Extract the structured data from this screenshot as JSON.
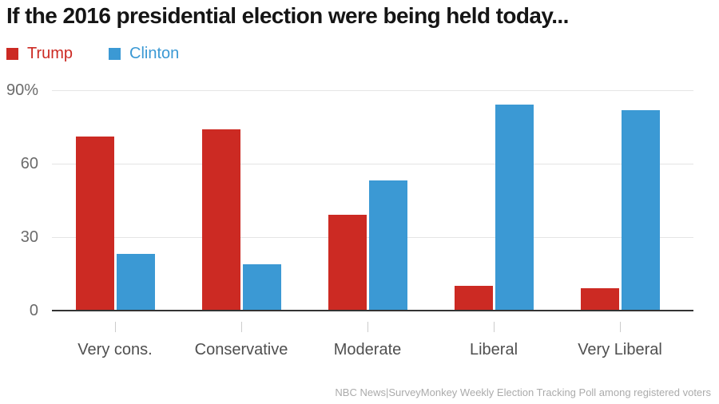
{
  "header": {
    "title": "If the 2016 presidential election were being held today..."
  },
  "chart_data": {
    "type": "bar",
    "categories": [
      "Very cons.",
      "Conservative",
      "Moderate",
      "Liberal",
      "Very Liberal"
    ],
    "series": [
      {
        "name": "Trump",
        "color": "#cc2a23",
        "values": [
          71,
          74,
          39,
          10,
          9
        ]
      },
      {
        "name": "Clinton",
        "color": "#3b99d4",
        "values": [
          23,
          19,
          53,
          84,
          82
        ]
      }
    ],
    "xlabel": "",
    "ylabel": "",
    "ylim": [
      0,
      90
    ],
    "yticks": [
      {
        "value": 90,
        "label": "90%"
      },
      {
        "value": 60,
        "label": "60"
      },
      {
        "value": 30,
        "label": "30"
      },
      {
        "value": 0,
        "label": "0"
      }
    ],
    "grid": true,
    "legend_position": "top-left",
    "axis_color": "#333333",
    "gridline_color": "#e5e5e5"
  },
  "footer": {
    "source": "NBC News|SurveyMonkey Weekly Election Tracking Poll among registered voters"
  }
}
